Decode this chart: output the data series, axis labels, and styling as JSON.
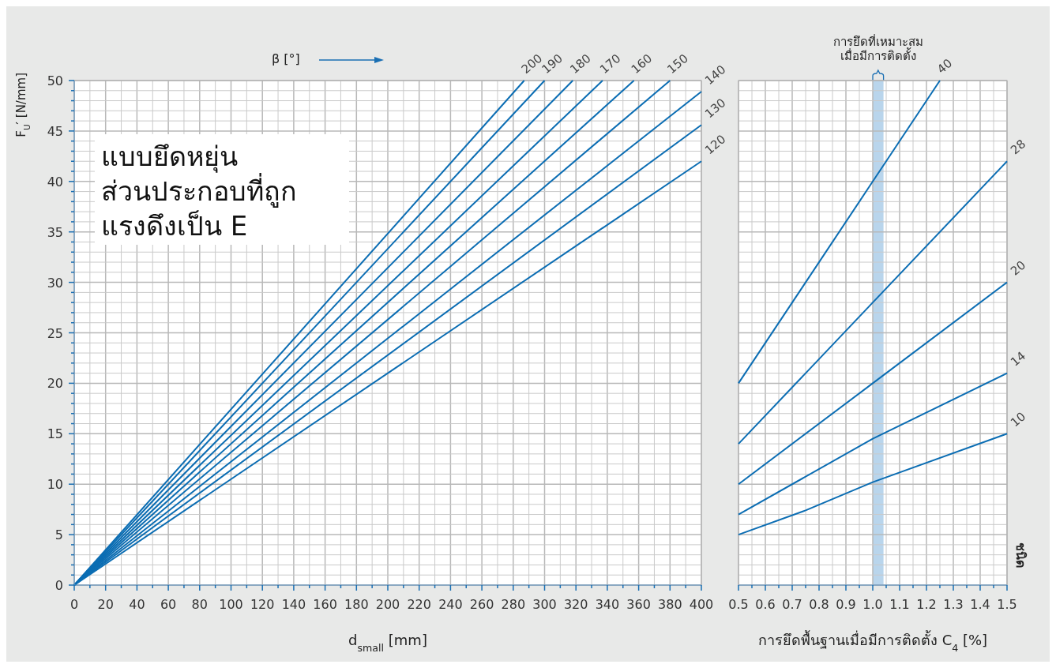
{
  "chart_data": [
    {
      "type": "line",
      "xlabel": "d$_{small}$ [mm]",
      "ylabel": "F$_{U}$′ [N/mm]",
      "legend_title": "β [°]",
      "annotations": [
        "แบบยึดหยุ่น\nส่วนประกอบที่ถูก\nแรงดึงเป็น E"
      ],
      "grid": true,
      "xlim": [
        0,
        400
      ],
      "ylim": [
        0,
        50
      ],
      "xticks": [
        0,
        {
          "value": 10,
          "label": null
        },
        20,
        {
          "value": 30,
          "label": null
        },
        40,
        {
          "value": 50,
          "label": null
        },
        60,
        {
          "value": 70,
          "label": null
        },
        80,
        {
          "value": 90,
          "label": null
        },
        100,
        {
          "value": 110,
          "label": null
        },
        120,
        {
          "value": 130,
          "label": null
        },
        140,
        {
          "value": 150,
          "label": null
        },
        160,
        {
          "value": 170,
          "label": null
        },
        180,
        {
          "value": 190,
          "label": null
        },
        200,
        {
          "value": 210,
          "label": null
        },
        220,
        {
          "value": 230,
          "label": null
        },
        240,
        {
          "value": 250,
          "label": null
        },
        260,
        {
          "value": 270,
          "label": null
        },
        280,
        {
          "value": 290,
          "label": null
        },
        300,
        {
          "value": 310,
          "label": null
        },
        320,
        {
          "value": 330,
          "label": null
        },
        340,
        {
          "value": 350,
          "label": null
        },
        360,
        {
          "value": 370,
          "label": null
        },
        380,
        {
          "value": 390,
          "label": null
        },
        400
      ],
      "yticks": [
        0,
        {
          "value": 1,
          "label": null
        },
        {
          "value": 2,
          "label": null
        },
        {
          "value": 3,
          "label": null
        },
        {
          "value": 4,
          "label": null
        },
        5,
        {
          "value": 6,
          "label": null
        },
        {
          "value": 7,
          "label": null
        },
        {
          "value": 8,
          "label": null
        },
        {
          "value": 9,
          "label": null
        },
        10,
        {
          "value": 11,
          "label": null
        },
        {
          "value": 12,
          "label": null
        },
        {
          "value": 13,
          "label": null
        },
        {
          "value": 14,
          "label": null
        },
        15,
        {
          "value": 16,
          "label": null
        },
        {
          "value": 17,
          "label": null
        },
        {
          "value": 18,
          "label": null
        },
        {
          "value": 19,
          "label": null
        },
        20,
        {
          "value": 21,
          "label": null
        },
        {
          "value": 22,
          "label": null
        },
        {
          "value": 23,
          "label": null
        },
        {
          "value": 24,
          "label": null
        },
        25,
        {
          "value": 26,
          "label": null
        },
        {
          "value": 27,
          "label": null
        },
        {
          "value": 28,
          "label": null
        },
        {
          "value": 29,
          "label": null
        },
        30,
        {
          "value": 31,
          "label": null
        },
        {
          "value": 32,
          "label": null
        },
        {
          "value": 33,
          "label": null
        },
        {
          "value": 34,
          "label": null
        },
        35,
        {
          "value": 36,
          "label": null
        },
        {
          "value": 37,
          "label": null
        },
        {
          "value": 38,
          "label": null
        },
        {
          "value": 39,
          "label": null
        },
        40,
        {
          "value": 41,
          "label": null
        },
        {
          "value": 42,
          "label": null
        },
        {
          "value": 43,
          "label": null
        },
        {
          "value": 44,
          "label": null
        },
        45,
        {
          "value": 46,
          "label": null
        },
        {
          "value": 47,
          "label": null
        },
        {
          "value": 48,
          "label": null
        },
        {
          "value": 49,
          "label": null
        },
        50
      ],
      "series": [
        {
          "name": "200",
          "color": "#0b6db3",
          "x": [
            0,
            287
          ],
          "values": [
            0,
            50
          ]
        },
        {
          "name": "190",
          "color": "#0b6db3",
          "x": [
            0,
            300
          ],
          "values": [
            0,
            50
          ]
        },
        {
          "name": "180",
          "color": "#0b6db3",
          "x": [
            0,
            318
          ],
          "values": [
            0,
            50
          ]
        },
        {
          "name": "170",
          "color": "#0b6db3",
          "x": [
            0,
            337
          ],
          "values": [
            0,
            50
          ]
        },
        {
          "name": "160",
          "color": "#0b6db3",
          "x": [
            0,
            357
          ],
          "values": [
            0,
            50
          ]
        },
        {
          "name": "150",
          "color": "#0b6db3",
          "x": [
            0,
            380
          ],
          "values": [
            0,
            50
          ]
        },
        {
          "name": "140",
          "color": "#0b6db3",
          "x": [
            0,
            400
          ],
          "values": [
            0,
            48.9
          ]
        },
        {
          "name": "130",
          "color": "#0b6db3",
          "x": [
            0,
            400
          ],
          "values": [
            0,
            45.6
          ]
        },
        {
          "name": "120",
          "color": "#0b6db3",
          "x": [
            0,
            400
          ],
          "values": [
            0,
            42
          ]
        }
      ]
    },
    {
      "type": "line",
      "xlabel": "การยึดพื้นฐานเมื่อมีการติดตั้ง C$_{4}$ [%]",
      "legend_title": "ชนิด",
      "grid": true,
      "tick_labels": "x",
      "xlim": [
        0.5,
        1.5
      ],
      "ylim": [
        0,
        50
      ],
      "xticks": [
        0.5,
        {
          "value": 0.55,
          "label": null
        },
        0.6,
        {
          "value": 0.65,
          "label": null
        },
        0.7,
        {
          "value": 0.75,
          "label": null
        },
        0.8,
        {
          "value": 0.85,
          "label": null
        },
        0.9,
        {
          "value": 0.95,
          "label": null
        },
        {
          "value": 1,
          "label": "1.0"
        },
        {
          "value": 1.05,
          "label": null
        },
        1.1,
        {
          "value": 1.15,
          "label": null
        },
        1.2,
        {
          "value": 1.25,
          "label": null
        },
        1.3,
        {
          "value": 1.35,
          "label": null
        },
        1.4,
        {
          "value": 1.45,
          "label": null
        },
        1.5
      ],
      "yticks": [
        0,
        {
          "value": 1,
          "label": null
        },
        {
          "value": 2,
          "label": null
        },
        {
          "value": 3,
          "label": null
        },
        {
          "value": 4,
          "label": null
        },
        5,
        {
          "value": 6,
          "label": null
        },
        {
          "value": 7,
          "label": null
        },
        {
          "value": 8,
          "label": null
        },
        {
          "value": 9,
          "label": null
        },
        10,
        {
          "value": 11,
          "label": null
        },
        {
          "value": 12,
          "label": null
        },
        {
          "value": 13,
          "label": null
        },
        {
          "value": 14,
          "label": null
        },
        15,
        {
          "value": 16,
          "label": null
        },
        {
          "value": 17,
          "label": null
        },
        {
          "value": 18,
          "label": null
        },
        {
          "value": 19,
          "label": null
        },
        20,
        {
          "value": 21,
          "label": null
        },
        {
          "value": 22,
          "label": null
        },
        {
          "value": 23,
          "label": null
        },
        {
          "value": 24,
          "label": null
        },
        25,
        {
          "value": 26,
          "label": null
        },
        {
          "value": 27,
          "label": null
        },
        {
          "value": 28,
          "label": null
        },
        {
          "value": 29,
          "label": null
        },
        30,
        {
          "value": 31,
          "label": null
        },
        {
          "value": 32,
          "label": null
        },
        {
          "value": 33,
          "label": null
        },
        {
          "value": 34,
          "label": null
        },
        35,
        {
          "value": 36,
          "label": null
        },
        {
          "value": 37,
          "label": null
        },
        {
          "value": 38,
          "label": null
        },
        {
          "value": 39,
          "label": null
        },
        40,
        {
          "value": 41,
          "label": null
        },
        {
          "value": 42,
          "label": null
        },
        {
          "value": 43,
          "label": null
        },
        {
          "value": 44,
          "label": null
        },
        45,
        {
          "value": 46,
          "label": null
        },
        {
          "value": 47,
          "label": null
        },
        {
          "value": 48,
          "label": null
        },
        {
          "value": 49,
          "label": null
        },
        50
      ],
      "bands": [
        {
          "axis": "x",
          "from": 1.0,
          "to": 1.04,
          "label": "การยึดที่เหมาะสม\nเมื่อมีการติดตั้ง",
          "color": "#b9d5ec"
        }
      ],
      "series": [
        {
          "name": "40",
          "color": "#0b6db3",
          "x": [
            0.5,
            1.0,
            1.25
          ],
          "values": [
            20,
            40,
            50
          ]
        },
        {
          "name": "28",
          "color": "#0b6db3",
          "x": [
            0.5,
            1.0,
            1.5
          ],
          "values": [
            14,
            28,
            42
          ]
        },
        {
          "name": "20",
          "color": "#0b6db3",
          "x": [
            0.5,
            1.0,
            1.5
          ],
          "values": [
            10,
            20,
            30
          ]
        },
        {
          "name": "14",
          "color": "#0b6db3",
          "x": [
            0.5,
            1.0,
            1.5
          ],
          "values": [
            7,
            14.5,
            21
          ]
        },
        {
          "name": "10",
          "color": "#0b6db3",
          "x": [
            0.5,
            0.75,
            1.0,
            1.5
          ],
          "values": [
            5,
            7.4,
            10.2,
            15
          ]
        }
      ]
    }
  ]
}
